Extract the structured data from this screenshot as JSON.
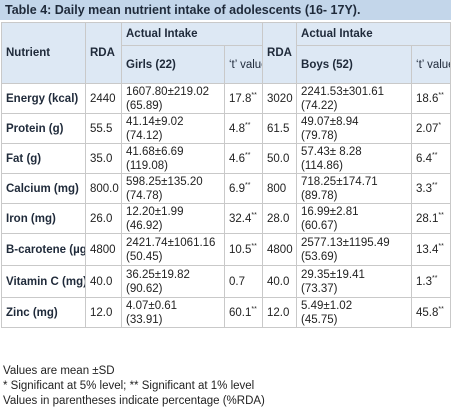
{
  "caption": "Table 4: Daily mean nutrient intake of adolescents (16- 17Y).",
  "headers": {
    "nutrient": "Nutrient",
    "rda": "RDA",
    "actual_intake": "Actual Intake",
    "girls": "Girls (22)",
    "boys": "Boys (52)",
    "t_value": "‘t’ value"
  },
  "rows": [
    {
      "nutrient": "Energy (kcal)",
      "g_rda": "2440",
      "g_mean": "1607.80±219.02",
      "g_pct": "(65.89)",
      "g_t": "17.8",
      "g_sig": "**",
      "b_rda": "3020",
      "b_mean": "2241.53±301.61",
      "b_pct": "(74.22)",
      "b_t": "18.6",
      "b_sig": "**"
    },
    {
      "nutrient": "Protein (g)",
      "g_rda": "55.5",
      "g_mean": "41.14±9.02",
      "g_pct": "(74.12)",
      "g_t": "4.8",
      "g_sig": "**",
      "b_rda": "61.5",
      "b_mean": "49.07±8.94",
      "b_pct": "(79.78)",
      "b_t": "2.07",
      "b_sig": "*"
    },
    {
      "nutrient": "Fat (g)",
      "g_rda": "35.0",
      "g_mean": "41.68±6.69",
      "g_pct": "(119.08)",
      "g_t": "4.6",
      "g_sig": "**",
      "b_rda": "50.0",
      "b_mean": "57.43± 8.28",
      "b_pct": "(114.86)",
      "b_t": "6.4",
      "b_sig": "**"
    },
    {
      "nutrient": "Calcium (mg)",
      "g_rda": "800.0",
      "g_mean": "598.25±135.20",
      "g_pct": "(74.78)",
      "g_t": "6.9",
      "g_sig": "**",
      "b_rda": "800",
      "b_mean": "718.25±174.71",
      "b_pct": "(89.78)",
      "b_t": "3.3",
      "b_sig": "**"
    },
    {
      "nutrient": "Iron (mg)",
      "g_rda": "26.0",
      "g_mean": "12.20±1.99",
      "g_pct": "(46.92)",
      "g_t": "32.4",
      "g_sig": "**",
      "b_rda": "28.0",
      "b_mean": "16.99±2.81",
      "b_pct": "(60.67)",
      "b_t": "28.1",
      "b_sig": "**"
    },
    {
      "nutrient": "B-carotene (µg)",
      "g_rda": "4800",
      "g_mean": "2421.74±1061.16",
      "g_pct": "(50.45)",
      "g_t": "10.5",
      "g_sig": "**",
      "b_rda": "4800",
      "b_mean": "2577.13±1195.49",
      "b_pct": "(53.69)",
      "b_t": "13.4",
      "b_sig": "**"
    },
    {
      "nutrient": "Vitamin C (mg)",
      "g_rda": "40.0",
      "g_mean": "36.25±19.82",
      "g_pct": "(90.62)",
      "g_t": "0.7",
      "g_sig": "",
      "b_rda": "40.0",
      "b_mean": "29.35±19.41",
      "b_pct": "(73.37)",
      "b_t": "1.3",
      "b_sig": "**"
    },
    {
      "nutrient": "Zinc (mg)",
      "g_rda": "12.0",
      "g_mean": "4.07±0.61",
      "g_pct": "(33.91)",
      "g_t": "60.1",
      "g_sig": "**",
      "b_rda": "12.0",
      "b_mean": "5.49±1.02",
      "b_pct": "(45.75)",
      "b_t": "45.8",
      "b_sig": "**"
    }
  ],
  "notes": [
    "Values are mean ±SD",
    "* Significant at 5% level; ** Significant at 1% level",
    "Values in parentheses indicate percentage (%RDA)"
  ],
  "colors": {
    "caption_bg": "#c3d6ea",
    "header_bg": "#dde8f4",
    "border": "#c9c9c9"
  }
}
